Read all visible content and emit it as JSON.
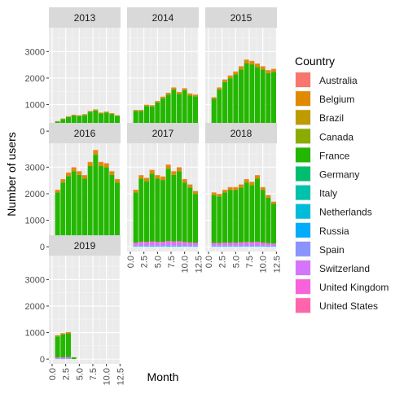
{
  "chart_data": {
    "type": "bar",
    "stacked": true,
    "faceted": true,
    "xlabel": "Month",
    "ylabel": "Number of users",
    "x_ticks": [
      "0.0",
      "2.5",
      "5.0",
      "7.5",
      "10.0",
      "12.5"
    ],
    "x_range": [
      -0.6,
      12.6
    ],
    "y_ticks": [
      "0",
      "1000",
      "2000",
      "3000"
    ],
    "y_range": [
      -180,
      3900
    ],
    "months": [
      1,
      2,
      3,
      4,
      5,
      6,
      7,
      8,
      9,
      10,
      11,
      12
    ],
    "legend": {
      "title": "Country",
      "position": "right",
      "entries": [
        {
          "name": "Australia",
          "color": "#F8766D"
        },
        {
          "name": "Belgium",
          "color": "#E18A00"
        },
        {
          "name": "Brazil",
          "color": "#BE9C00"
        },
        {
          "name": "Canada",
          "color": "#8CAB00"
        },
        {
          "name": "France",
          "color": "#24B700"
        },
        {
          "name": "Germany",
          "color": "#00BE70"
        },
        {
          "name": "Italy",
          "color": "#00C1AB"
        },
        {
          "name": "Netherlands",
          "color": "#00BBDA"
        },
        {
          "name": "Russia",
          "color": "#00ACFC"
        },
        {
          "name": "Spain",
          "color": "#8B93FF"
        },
        {
          "name": "Switzerland",
          "color": "#D575FE"
        },
        {
          "name": "United Kingdom",
          "color": "#F962DD"
        },
        {
          "name": "United States",
          "color": "#FF65AC"
        }
      ]
    },
    "panels": [
      {
        "label": "2013",
        "totals": [
          380,
          480,
          560,
          620,
          600,
          640,
          760,
          820,
          700,
          740,
          680,
          600
        ]
      },
      {
        "label": "2014",
        "totals": [
          800,
          800,
          1000,
          980,
          1140,
          1300,
          1450,
          1650,
          1480,
          1620,
          1420,
          1380
        ]
      },
      {
        "label": "2015",
        "totals": [
          1280,
          1650,
          1950,
          2100,
          2250,
          2450,
          2700,
          2650,
          2550,
          2450,
          2300,
          2350
        ]
      },
      {
        "label": "2016",
        "totals": [
          2150,
          2550,
          2800,
          3000,
          2850,
          2700,
          3200,
          3650,
          3200,
          3150,
          2850,
          2550
        ]
      },
      {
        "label": "2017",
        "totals": [
          2150,
          2700,
          2600,
          2900,
          2700,
          2650,
          3100,
          2850,
          3000,
          2550,
          2350,
          2100
        ]
      },
      {
        "label": "2018",
        "totals": [
          2050,
          2000,
          2150,
          2250,
          2250,
          2350,
          2550,
          2450,
          2700,
          2250,
          1950,
          1700
        ]
      },
      {
        "label": "2019",
        "totals": [
          900,
          980,
          1020,
          70,
          0,
          0,
          0,
          0,
          0,
          0,
          0,
          0
        ]
      }
    ],
    "composition_note_shares": {
      "France": 0.88,
      "Switzerland": 0.03,
      "United Kingdom": 0.02,
      "Spain": 0.01,
      "Russia": 0.005,
      "Netherlands": 0.005,
      "Belgium": 0.045,
      "Australia": 0.005
    }
  }
}
